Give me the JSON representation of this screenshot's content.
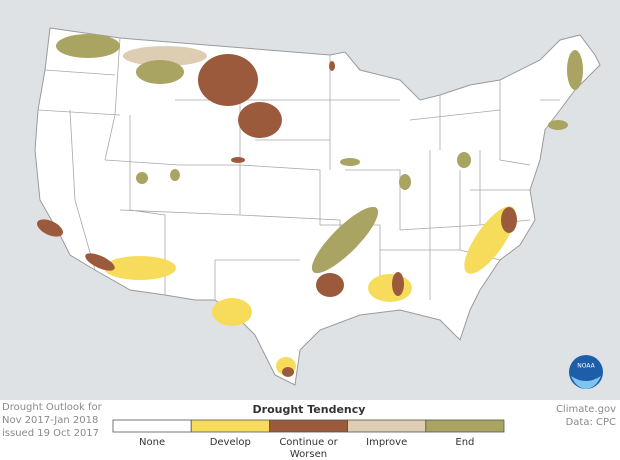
{
  "caption": {
    "lines": [
      "Drought Outlook for",
      "Nov 2017-Jan 2018",
      "issued 19 Oct 2017"
    ]
  },
  "legend": {
    "title": "Drought Tendency",
    "items": [
      {
        "lines": [
          "None"
        ],
        "color": "#ffffff"
      },
      {
        "lines": [
          "Develop"
        ],
        "color": "#f7dc5b"
      },
      {
        "lines": [
          "Continue or",
          "Worsen"
        ],
        "color": "#9b5a3c"
      },
      {
        "lines": [
          "Improve"
        ],
        "color": "#ddcdb2"
      },
      {
        "lines": [
          "End"
        ],
        "color": "#aaa462"
      }
    ]
  },
  "credits": {
    "lines": [
      "Climate.gov",
      "Data: CPC"
    ]
  },
  "logo": {
    "label": "NOAA"
  }
}
